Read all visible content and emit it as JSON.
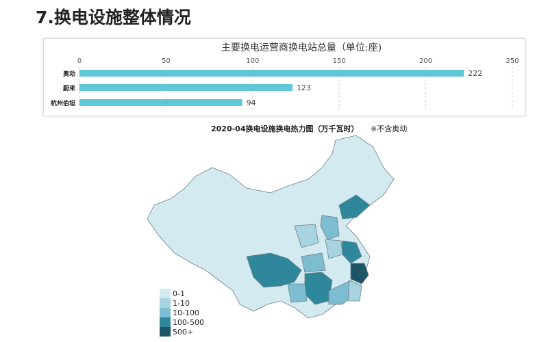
{
  "page_title": "7.换电设施整体情况",
  "chart_data": [
    {
      "type": "bar",
      "orientation": "horizontal",
      "title": "主要换电运营商换电站总量（单位:座)",
      "categories": [
        "奥动",
        "蔚来",
        "杭州伯坦"
      ],
      "values": [
        222,
        123,
        94
      ],
      "xlim": [
        0,
        250
      ],
      "ticks": [
        0,
        50,
        100,
        150,
        200,
        250
      ],
      "grid": true,
      "bar_color": "#5fc7d6"
    },
    {
      "type": "heatmap",
      "subtitle": "2020-04换电设施换电热力图（万千瓦时）",
      "note": "※不含奥动",
      "legend": [
        {
          "label": "0-1",
          "color": "#d4eaf1"
        },
        {
          "label": "1-10",
          "color": "#a8d4e2"
        },
        {
          "label": "10-100",
          "color": "#7dbdd1"
        },
        {
          "label": "100-500",
          "color": "#2f879b"
        },
        {
          "label": "500+",
          "color": "#1c5666"
        }
      ]
    }
  ]
}
